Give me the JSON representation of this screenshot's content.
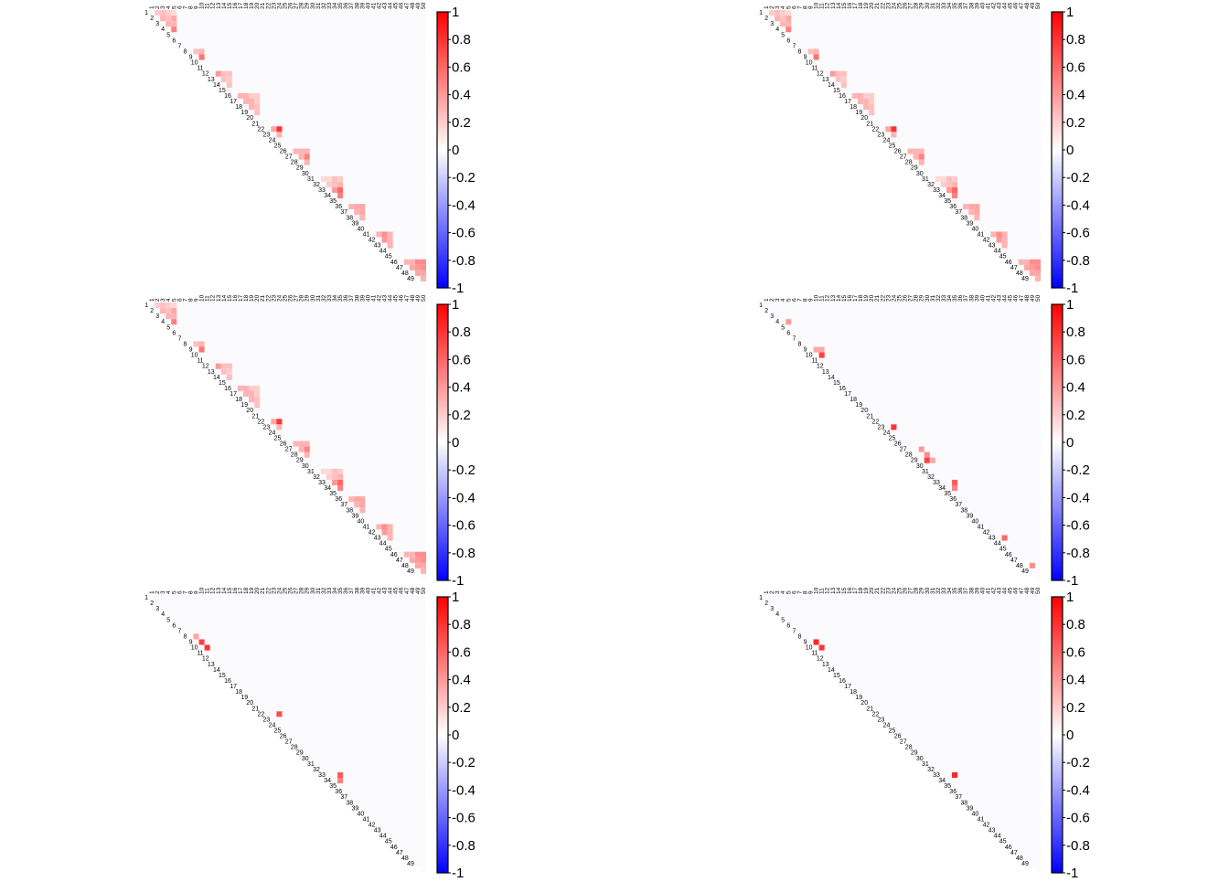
{
  "figure": {
    "colorbar_ticks": [
      "1",
      "0.8",
      "0.6",
      "0.4",
      "0.2",
      "0",
      "-0.2",
      "-0.4",
      "-0.6",
      "-0.8",
      "-1"
    ],
    "colorbar_range": [
      -1,
      1
    ],
    "colors": {
      "positive": "#ff0000",
      "zero": "#ffffff",
      "negative": "#0000ff",
      "matrix_background": "#fbfbfd"
    },
    "axis_labels": [
      "1",
      "2",
      "3",
      "4",
      "5",
      "6",
      "7",
      "8",
      "9",
      "10",
      "11",
      "12",
      "13",
      "14",
      "15",
      "16",
      "17",
      "18",
      "19",
      "20",
      "21",
      "22",
      "23",
      "24",
      "25",
      "26",
      "27",
      "28",
      "29",
      "30",
      "31",
      "32",
      "33",
      "34",
      "35",
      "36",
      "37",
      "38",
      "39",
      "40",
      "41",
      "42",
      "43",
      "44",
      "45",
      "46",
      "47",
      "48",
      "49",
      "50"
    ]
  },
  "chart_data": [
    {
      "type": "heatmap",
      "shape": "upper-triangular",
      "n": 50,
      "blocks": [
        [
          1,
          5
        ],
        [
          8,
          10
        ],
        [
          12,
          15
        ],
        [
          16,
          20
        ],
        [
          22,
          24
        ],
        [
          26,
          29
        ],
        [
          31,
          35
        ],
        [
          36,
          39
        ],
        [
          41,
          44
        ],
        [
          46,
          50
        ]
      ],
      "cells": [
        [
          1,
          2,
          0.2
        ],
        [
          1,
          3,
          0.25
        ],
        [
          1,
          4,
          0.2
        ],
        [
          1,
          5,
          0.15
        ],
        [
          2,
          3,
          0.3
        ],
        [
          2,
          4,
          0.25
        ],
        [
          2,
          5,
          0.35
        ],
        [
          3,
          4,
          0.3
        ],
        [
          3,
          5,
          0.3
        ],
        [
          4,
          5,
          0.5
        ],
        [
          8,
          9,
          0.25
        ],
        [
          8,
          10,
          0.3
        ],
        [
          9,
          10,
          0.55
        ],
        [
          12,
          13,
          0.4
        ],
        [
          12,
          14,
          0.25
        ],
        [
          12,
          15,
          0.25
        ],
        [
          13,
          14,
          0.25
        ],
        [
          13,
          15,
          0.2
        ],
        [
          14,
          15,
          0.25
        ],
        [
          16,
          17,
          0.3
        ],
        [
          16,
          18,
          0.3
        ],
        [
          16,
          19,
          0.2
        ],
        [
          16,
          20,
          0.2
        ],
        [
          17,
          18,
          0.3
        ],
        [
          17,
          19,
          0.3
        ],
        [
          17,
          20,
          0.2
        ],
        [
          18,
          19,
          0.3
        ],
        [
          18,
          20,
          0.25
        ],
        [
          19,
          20,
          0.25
        ],
        [
          22,
          23,
          0.35
        ],
        [
          22,
          24,
          0.8
        ],
        [
          23,
          24,
          0.3
        ],
        [
          26,
          27,
          0.3
        ],
        [
          26,
          28,
          0.3
        ],
        [
          26,
          29,
          0.3
        ],
        [
          27,
          28,
          0.3
        ],
        [
          27,
          29,
          0.5
        ],
        [
          28,
          29,
          0.3
        ],
        [
          31,
          32,
          0.15
        ],
        [
          31,
          33,
          0.15
        ],
        [
          31,
          34,
          0.25
        ],
        [
          31,
          35,
          0.2
        ],
        [
          32,
          33,
          0.2
        ],
        [
          32,
          34,
          0.25
        ],
        [
          32,
          35,
          0.3
        ],
        [
          33,
          34,
          0.4
        ],
        [
          33,
          35,
          0.6
        ],
        [
          34,
          35,
          0.5
        ],
        [
          36,
          37,
          0.3
        ],
        [
          36,
          38,
          0.35
        ],
        [
          36,
          39,
          0.35
        ],
        [
          37,
          38,
          0.3
        ],
        [
          37,
          39,
          0.35
        ],
        [
          38,
          39,
          0.3
        ],
        [
          41,
          42,
          0.3
        ],
        [
          41,
          43,
          0.45
        ],
        [
          41,
          44,
          0.3
        ],
        [
          42,
          43,
          0.4
        ],
        [
          42,
          44,
          0.3
        ],
        [
          43,
          44,
          0.3
        ],
        [
          46,
          47,
          0.3
        ],
        [
          46,
          48,
          0.3
        ],
        [
          46,
          49,
          0.45
        ],
        [
          46,
          50,
          0.45
        ],
        [
          47,
          48,
          0.35
        ],
        [
          47,
          49,
          0.4
        ],
        [
          47,
          50,
          0.45
        ],
        [
          48,
          49,
          0.35
        ],
        [
          48,
          50,
          0.35
        ],
        [
          49,
          50,
          0.3
        ]
      ]
    },
    {
      "type": "heatmap",
      "shape": "upper-triangular",
      "n": 50,
      "blocks": [
        [
          1,
          5
        ],
        [
          8,
          10
        ],
        [
          12,
          15
        ],
        [
          16,
          20
        ],
        [
          22,
          24
        ],
        [
          26,
          29
        ],
        [
          31,
          35
        ],
        [
          36,
          39
        ],
        [
          41,
          44
        ],
        [
          46,
          50
        ]
      ],
      "cells": [
        [
          1,
          2,
          0.2
        ],
        [
          1,
          3,
          0.25
        ],
        [
          1,
          4,
          0.2
        ],
        [
          1,
          5,
          0.15
        ],
        [
          2,
          3,
          0.3
        ],
        [
          2,
          4,
          0.25
        ],
        [
          2,
          5,
          0.35
        ],
        [
          3,
          4,
          0.3
        ],
        [
          3,
          5,
          0.3
        ],
        [
          4,
          5,
          0.5
        ],
        [
          8,
          9,
          0.25
        ],
        [
          8,
          10,
          0.3
        ],
        [
          9,
          10,
          0.55
        ],
        [
          12,
          13,
          0.4
        ],
        [
          12,
          14,
          0.25
        ],
        [
          12,
          15,
          0.25
        ],
        [
          13,
          14,
          0.25
        ],
        [
          13,
          15,
          0.2
        ],
        [
          14,
          15,
          0.25
        ],
        [
          16,
          17,
          0.3
        ],
        [
          16,
          18,
          0.3
        ],
        [
          16,
          19,
          0.2
        ],
        [
          16,
          20,
          0.2
        ],
        [
          17,
          18,
          0.3
        ],
        [
          17,
          19,
          0.3
        ],
        [
          17,
          20,
          0.2
        ],
        [
          18,
          19,
          0.3
        ],
        [
          18,
          20,
          0.25
        ],
        [
          19,
          20,
          0.25
        ],
        [
          22,
          23,
          0.35
        ],
        [
          22,
          24,
          0.8
        ],
        [
          23,
          24,
          0.3
        ],
        [
          26,
          27,
          0.3
        ],
        [
          26,
          28,
          0.3
        ],
        [
          26,
          29,
          0.3
        ],
        [
          27,
          28,
          0.3
        ],
        [
          27,
          29,
          0.5
        ],
        [
          28,
          29,
          0.3
        ],
        [
          31,
          32,
          0.15
        ],
        [
          31,
          33,
          0.15
        ],
        [
          31,
          34,
          0.25
        ],
        [
          31,
          35,
          0.2
        ],
        [
          32,
          33,
          0.2
        ],
        [
          32,
          34,
          0.25
        ],
        [
          32,
          35,
          0.3
        ],
        [
          33,
          34,
          0.4
        ],
        [
          33,
          35,
          0.6
        ],
        [
          34,
          35,
          0.5
        ],
        [
          36,
          37,
          0.3
        ],
        [
          36,
          38,
          0.35
        ],
        [
          36,
          39,
          0.35
        ],
        [
          37,
          38,
          0.3
        ],
        [
          37,
          39,
          0.35
        ],
        [
          38,
          39,
          0.3
        ],
        [
          41,
          42,
          0.3
        ],
        [
          41,
          43,
          0.45
        ],
        [
          41,
          44,
          0.3
        ],
        [
          42,
          43,
          0.4
        ],
        [
          42,
          44,
          0.3
        ],
        [
          43,
          44,
          0.3
        ],
        [
          46,
          47,
          0.3
        ],
        [
          46,
          48,
          0.3
        ],
        [
          46,
          49,
          0.45
        ],
        [
          46,
          50,
          0.45
        ],
        [
          47,
          48,
          0.35
        ],
        [
          47,
          49,
          0.4
        ],
        [
          47,
          50,
          0.45
        ],
        [
          48,
          49,
          0.35
        ],
        [
          48,
          50,
          0.35
        ],
        [
          49,
          50,
          0.3
        ]
      ]
    },
    {
      "type": "heatmap",
      "shape": "upper-triangular",
      "n": 50,
      "blocks": [
        [
          1,
          5
        ],
        [
          8,
          10
        ],
        [
          12,
          15
        ],
        [
          16,
          20
        ],
        [
          22,
          24
        ],
        [
          26,
          29
        ],
        [
          31,
          35
        ],
        [
          36,
          39
        ],
        [
          41,
          44
        ],
        [
          46,
          50
        ]
      ],
      "cells": [
        [
          1,
          2,
          0.2
        ],
        [
          1,
          3,
          0.25
        ],
        [
          1,
          4,
          0.2
        ],
        [
          1,
          5,
          0.15
        ],
        [
          2,
          3,
          0.3
        ],
        [
          2,
          4,
          0.25
        ],
        [
          2,
          5,
          0.35
        ],
        [
          3,
          4,
          0.3
        ],
        [
          3,
          5,
          0.3
        ],
        [
          4,
          5,
          0.5
        ],
        [
          8,
          9,
          0.25
        ],
        [
          8,
          10,
          0.3
        ],
        [
          9,
          10,
          0.55
        ],
        [
          12,
          13,
          0.4
        ],
        [
          12,
          14,
          0.25
        ],
        [
          12,
          15,
          0.25
        ],
        [
          13,
          14,
          0.25
        ],
        [
          13,
          15,
          0.2
        ],
        [
          14,
          15,
          0.25
        ],
        [
          16,
          17,
          0.3
        ],
        [
          16,
          18,
          0.3
        ],
        [
          16,
          19,
          0.2
        ],
        [
          16,
          20,
          0.2
        ],
        [
          17,
          18,
          0.3
        ],
        [
          17,
          19,
          0.3
        ],
        [
          17,
          20,
          0.2
        ],
        [
          18,
          19,
          0.3
        ],
        [
          18,
          20,
          0.25
        ],
        [
          19,
          20,
          0.25
        ],
        [
          22,
          23,
          0.35
        ],
        [
          22,
          24,
          0.8
        ],
        [
          23,
          24,
          0.3
        ],
        [
          26,
          27,
          0.3
        ],
        [
          26,
          28,
          0.3
        ],
        [
          26,
          29,
          0.3
        ],
        [
          27,
          28,
          0.3
        ],
        [
          27,
          29,
          0.5
        ],
        [
          28,
          29,
          0.3
        ],
        [
          31,
          32,
          0.15
        ],
        [
          31,
          33,
          0.15
        ],
        [
          31,
          34,
          0.25
        ],
        [
          31,
          35,
          0.2
        ],
        [
          32,
          33,
          0.2
        ],
        [
          32,
          34,
          0.25
        ],
        [
          32,
          35,
          0.3
        ],
        [
          33,
          34,
          0.4
        ],
        [
          33,
          35,
          0.6
        ],
        [
          34,
          35,
          0.5
        ],
        [
          36,
          37,
          0.3
        ],
        [
          36,
          38,
          0.35
        ],
        [
          36,
          39,
          0.35
        ],
        [
          37,
          38,
          0.3
        ],
        [
          37,
          39,
          0.35
        ],
        [
          38,
          39,
          0.3
        ],
        [
          41,
          42,
          0.3
        ],
        [
          41,
          43,
          0.45
        ],
        [
          41,
          44,
          0.3
        ],
        [
          42,
          43,
          0.4
        ],
        [
          42,
          44,
          0.3
        ],
        [
          43,
          44,
          0.3
        ],
        [
          46,
          47,
          0.3
        ],
        [
          46,
          48,
          0.3
        ],
        [
          46,
          49,
          0.45
        ],
        [
          46,
          50,
          0.45
        ],
        [
          47,
          48,
          0.35
        ],
        [
          47,
          49,
          0.4
        ],
        [
          47,
          50,
          0.45
        ],
        [
          48,
          49,
          0.35
        ],
        [
          48,
          50,
          0.35
        ],
        [
          49,
          50,
          0.3
        ]
      ]
    },
    {
      "type": "heatmap",
      "shape": "upper-triangular",
      "n": 50,
      "cells": [
        [
          4,
          5,
          0.4
        ],
        [
          9,
          10,
          0.35
        ],
        [
          9,
          11,
          0.35
        ],
        [
          10,
          11,
          0.75
        ],
        [
          23,
          24,
          0.8
        ],
        [
          27,
          29,
          0.4
        ],
        [
          28,
          30,
          0.45
        ],
        [
          29,
          30,
          0.75
        ],
        [
          29,
          31,
          0.35
        ],
        [
          33,
          35,
          0.65
        ],
        [
          34,
          35,
          0.5
        ],
        [
          43,
          44,
          0.6
        ],
        [
          48,
          49,
          0.45
        ]
      ]
    },
    {
      "type": "heatmap",
      "shape": "upper-triangular",
      "n": 50,
      "cells": [
        [
          8,
          9,
          0.35
        ],
        [
          9,
          10,
          0.75
        ],
        [
          10,
          11,
          0.8
        ],
        [
          22,
          24,
          0.7
        ],
        [
          33,
          35,
          0.65
        ],
        [
          34,
          35,
          0.5
        ]
      ]
    },
    {
      "type": "heatmap",
      "shape": "upper-triangular",
      "n": 50,
      "cells": [
        [
          9,
          10,
          0.85
        ],
        [
          10,
          11,
          0.8
        ],
        [
          33,
          35,
          0.85
        ]
      ]
    }
  ]
}
